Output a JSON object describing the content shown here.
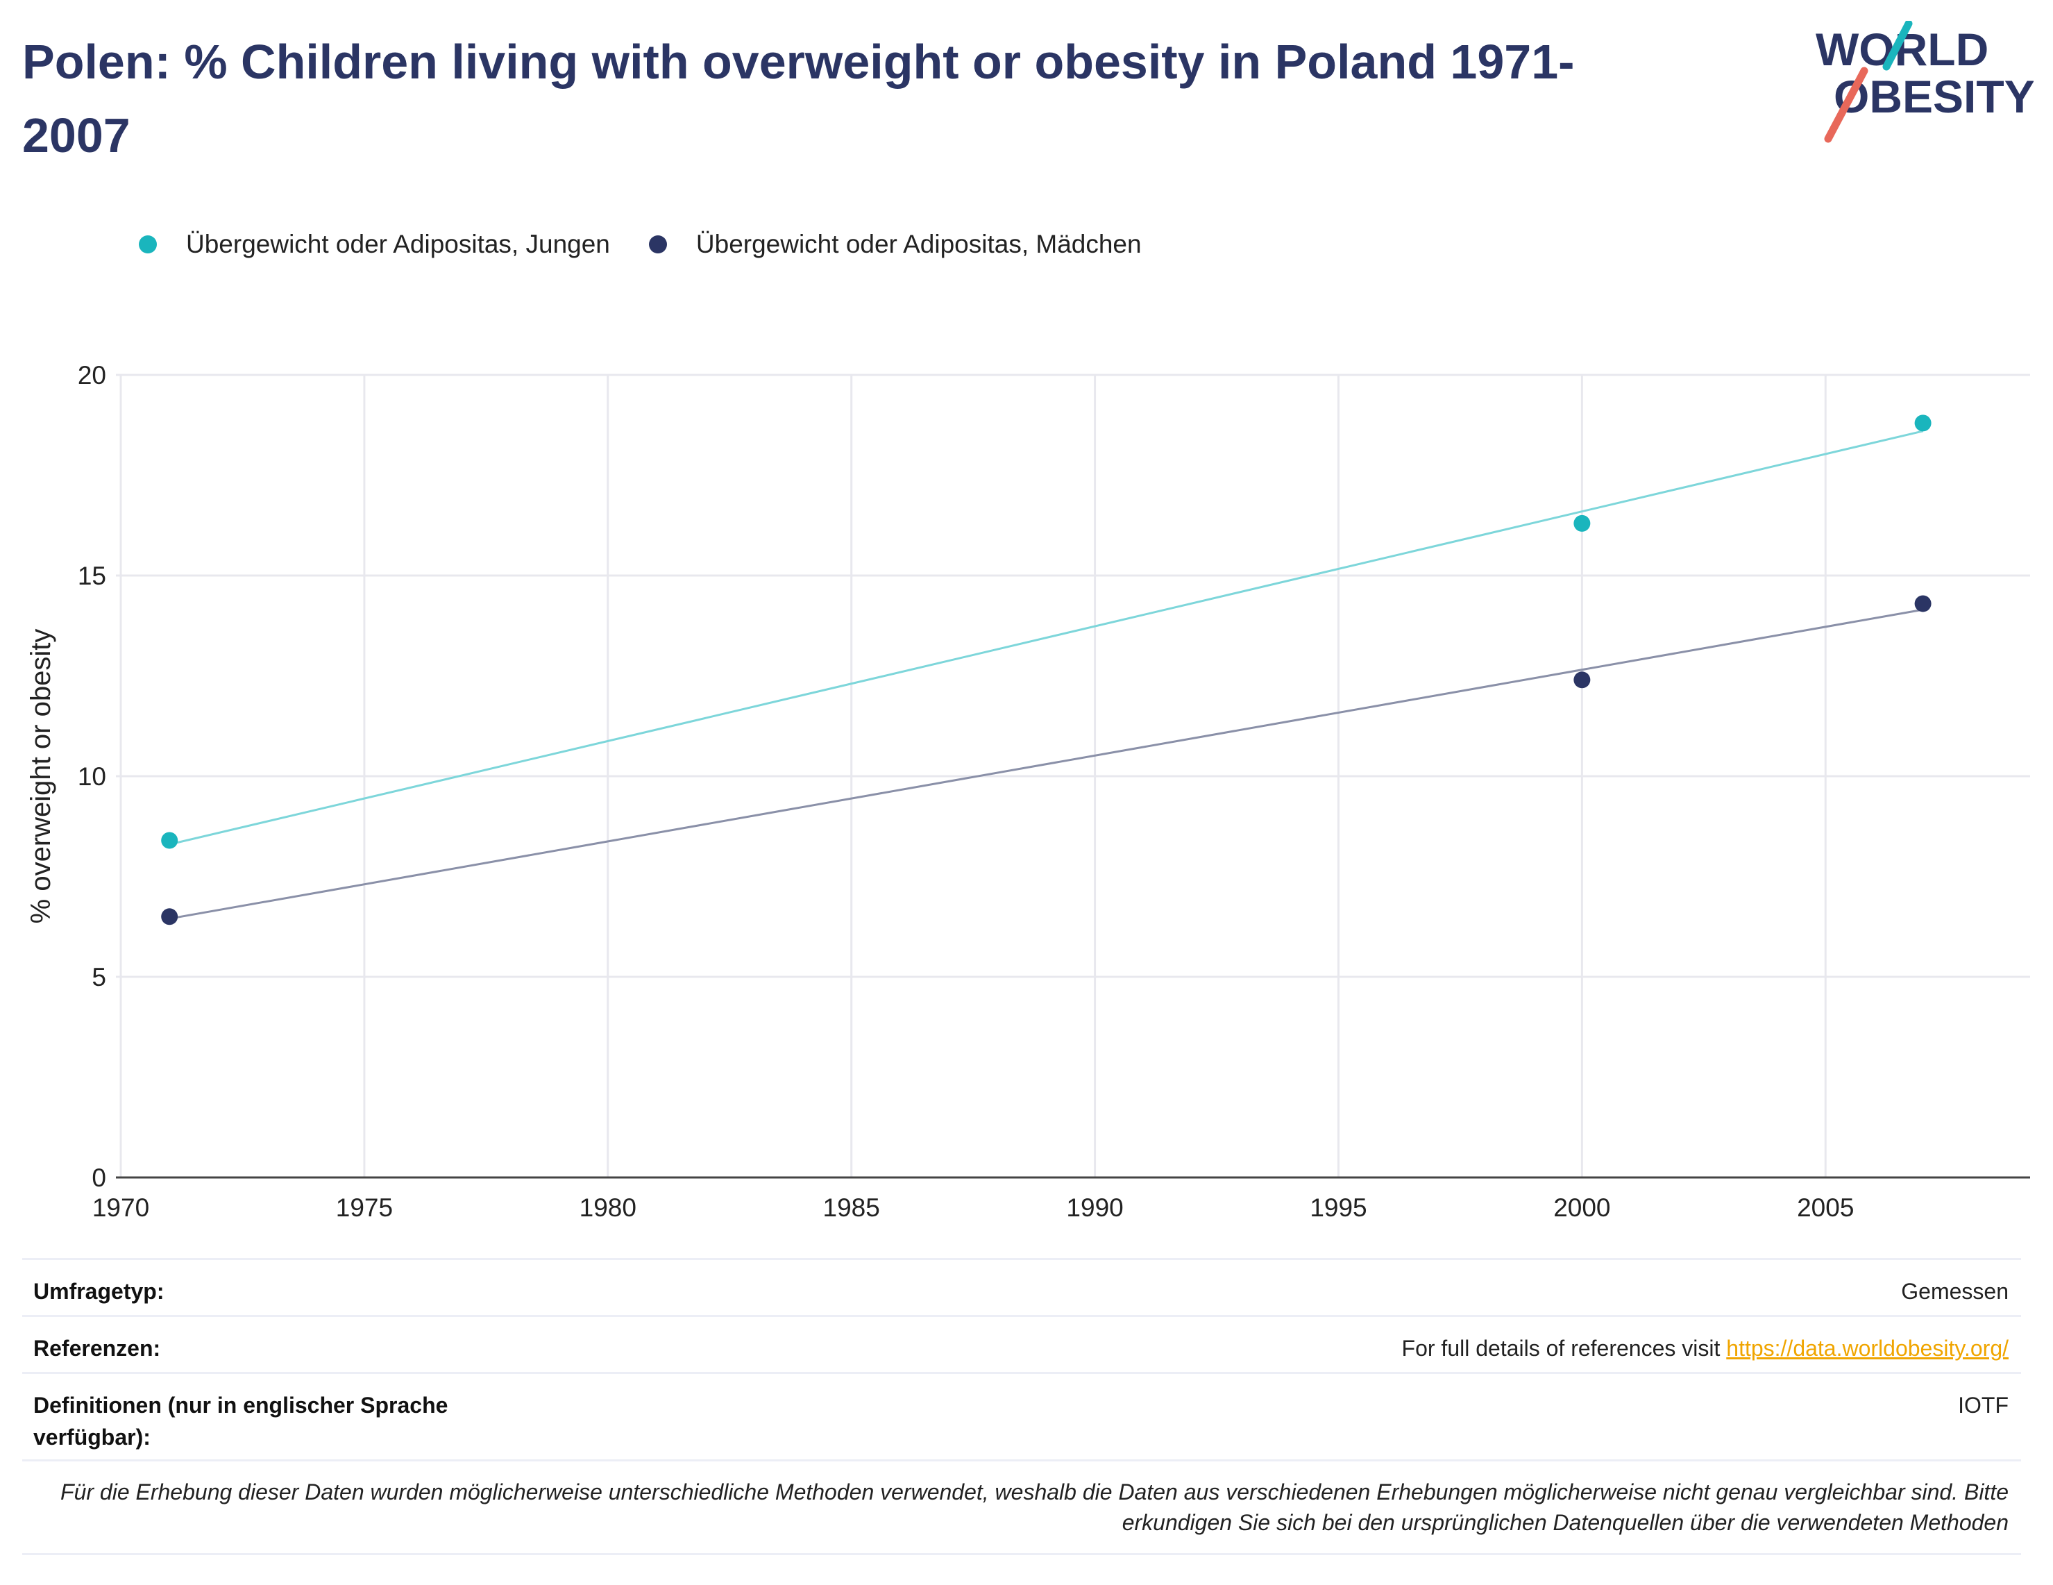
{
  "title": "Polen: % Children living with overweight or obesity in Poland 1971-2007",
  "logo": {
    "line1": "WORLD",
    "line2": "OBESITY",
    "icon": "world-obesity-logo"
  },
  "colors": {
    "boys": "#1ab5bd",
    "girls": "#2b3564",
    "title": "#2b3564",
    "link": "#f0a500",
    "grid": "#e8e8ee",
    "boys_trend": "#7dd6da",
    "girls_trend": "#8a90a8"
  },
  "chart_data": {
    "type": "scatter",
    "title": "Polen: % Children living with overweight or obesity in Poland 1971-2007",
    "xlabel": "",
    "ylabel": "% overweight or obesity",
    "xlim": [
      1969.9,
      2009.2
    ],
    "ylim": [
      0,
      20
    ],
    "xticks": [
      1970,
      1975,
      1980,
      1985,
      1990,
      1995,
      2000,
      2005
    ],
    "yticks": [
      0,
      5,
      10,
      15,
      20
    ],
    "grid": true,
    "legend_position": "top-left",
    "series": [
      {
        "name": "Übergewicht oder Adipositas, Jungen",
        "x": [
          1971,
          2000,
          2007
        ],
        "y": [
          8.4,
          16.3,
          18.8
        ],
        "trendline": {
          "x": [
            1971,
            2007
          ],
          "y": [
            8.3,
            18.6
          ]
        }
      },
      {
        "name": "Übergewicht oder Adipositas, Mädchen",
        "x": [
          1971,
          2000,
          2007
        ],
        "y": [
          6.5,
          12.4,
          14.3
        ],
        "trendline": {
          "x": [
            1971,
            2007
          ],
          "y": [
            6.45,
            14.15
          ]
        }
      }
    ]
  },
  "meta": {
    "survey_type_label": "Umfragetyp:",
    "survey_type_value": "Gemessen",
    "references_label": "Referenzen:",
    "references_text": "For full details of references visit ",
    "references_link": "https://data.worldobesity.org/",
    "definitions_label": "Definitionen (nur in englischer Sprache verfügbar):",
    "definitions_value": "IOTF",
    "note": "Für die Erhebung dieser Daten wurden möglicherweise unterschiedliche Methoden verwendet, weshalb die Daten aus verschiedenen Erhebungen möglicherweise nicht genau vergleichbar sind. Bitte erkundigen Sie sich bei den ursprünglichen Datenquellen über die verwendeten Methoden"
  }
}
